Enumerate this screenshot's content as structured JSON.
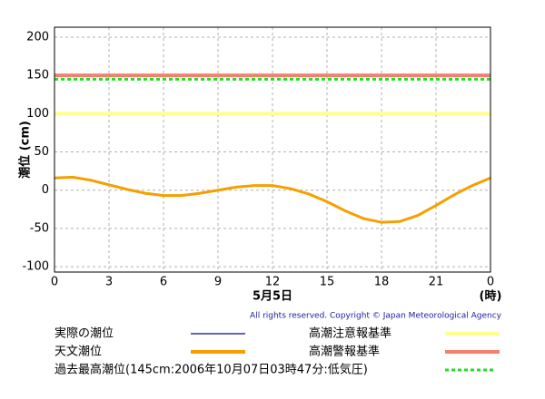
{
  "chart_data": {
    "type": "line",
    "y_label": "潮位 (cm)",
    "x_label": "5月5日",
    "x_unit": "(時)",
    "copyright": "All rights reserved. Copyright © Japan Meteorological Agency",
    "xlim": [
      0,
      24
    ],
    "xticks": [
      0,
      3,
      6,
      9,
      12,
      15,
      18,
      21,
      {
        "value": 24,
        "label": "0"
      }
    ],
    "ylim": [
      -107,
      213
    ],
    "yticks": [
      -100,
      -50,
      0,
      50,
      100,
      150,
      200
    ],
    "grid": true,
    "x": [
      0,
      1,
      2,
      3,
      4,
      5,
      6,
      7,
      8,
      9,
      10,
      11,
      12,
      13,
      14,
      15,
      16,
      17,
      18,
      19,
      20,
      21,
      22,
      23,
      24
    ],
    "series": [
      {
        "name": "実際の潮位",
        "color": "#3030a0"
      },
      {
        "name": "天文潮位",
        "color": "#f5a000",
        "values": [
          16,
          17,
          13,
          7,
          1,
          -4,
          -7,
          -7,
          -4,
          0,
          4,
          6,
          6,
          2,
          -5,
          -15,
          -27,
          -37,
          -42,
          -41,
          -33,
          -20,
          -6,
          6,
          16
        ]
      }
    ],
    "reference_lines": [
      {
        "name": "高潮注意報基準",
        "value": 100,
        "color": "#ffff90",
        "dashed": false
      },
      {
        "name": "高潮警報基準",
        "value": 150,
        "color": "#f08070",
        "dashed": false
      },
      {
        "name": "過去最高潮位(145cm:2006年10月07日03時47分:低気圧)",
        "value": 145,
        "color": "#22dd22",
        "dashed": true
      }
    ]
  }
}
